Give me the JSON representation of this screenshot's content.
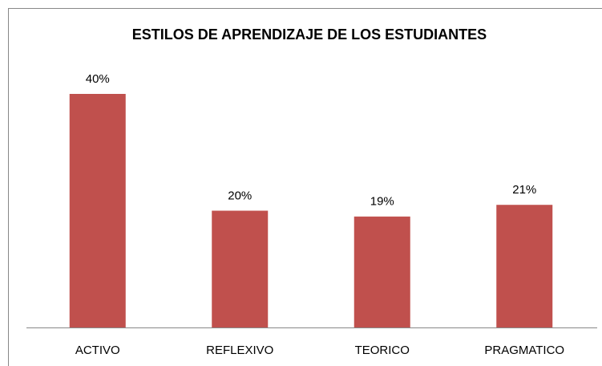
{
  "chart_data": {
    "type": "bar",
    "title": "ESTILOS DE APRENDIZAJE DE LOS ESTUDIANTES",
    "categories": [
      "ACTIVO",
      "REFLEXIVO",
      "TEORICO",
      "PRAGMATICO"
    ],
    "values": [
      40,
      20,
      19,
      21
    ],
    "value_labels": [
      "40%",
      "20%",
      "19%",
      "21%"
    ],
    "color": "#c0504d"
  }
}
